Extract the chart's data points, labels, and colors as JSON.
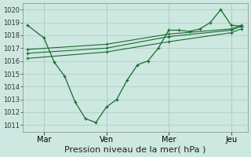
{
  "xlabel": "Pression niveau de la mer( hPa )",
  "ylim": [
    1010.5,
    1020.5
  ],
  "yticks": [
    1011,
    1012,
    1013,
    1014,
    1015,
    1016,
    1017,
    1018,
    1019,
    1020
  ],
  "xtick_labels": [
    "Mar",
    "Ven",
    "Mer",
    "Jeu"
  ],
  "xtick_positions": [
    0.5,
    3.5,
    6.5,
    9.5
  ],
  "bg_color": "#cde8e0",
  "grid_color": "#aaccbe",
  "line_color": "#1a6b30",
  "line1": {
    "x": [
      -0.3,
      0.5,
      1.0,
      1.5,
      2.0,
      2.5,
      3.0,
      3.5,
      4.0,
      4.5,
      5.0,
      5.5,
      6.0,
      6.5,
      7.0,
      7.5,
      8.0,
      8.5,
      9.0,
      9.5,
      10.0
    ],
    "y": [
      1018.8,
      1017.8,
      1015.9,
      1014.8,
      1012.8,
      1011.5,
      1011.2,
      1012.4,
      1013.0,
      1014.5,
      1015.7,
      1016.0,
      1017.0,
      1018.4,
      1018.4,
      1018.3,
      1018.5,
      1019.0,
      1020.0,
      1018.8,
      1018.7
    ]
  },
  "line2": {
    "x": [
      -0.3,
      3.5,
      6.5,
      9.5,
      10.0
    ],
    "y": [
      1016.6,
      1017.0,
      1017.9,
      1018.4,
      1018.7
    ]
  },
  "line3": {
    "x": [
      -0.3,
      3.5,
      6.5,
      9.5,
      10.0
    ],
    "y": [
      1016.2,
      1016.7,
      1017.5,
      1018.2,
      1018.5
    ]
  },
  "line4": {
    "x": [
      -0.3,
      3.5,
      6.5,
      9.5,
      10.0
    ],
    "y": [
      1016.9,
      1017.3,
      1018.1,
      1018.5,
      1018.8
    ]
  },
  "xlim": [
    -0.5,
    10.3
  ],
  "xlabel_fontsize": 8,
  "ytick_fontsize": 6,
  "xtick_fontsize": 7
}
